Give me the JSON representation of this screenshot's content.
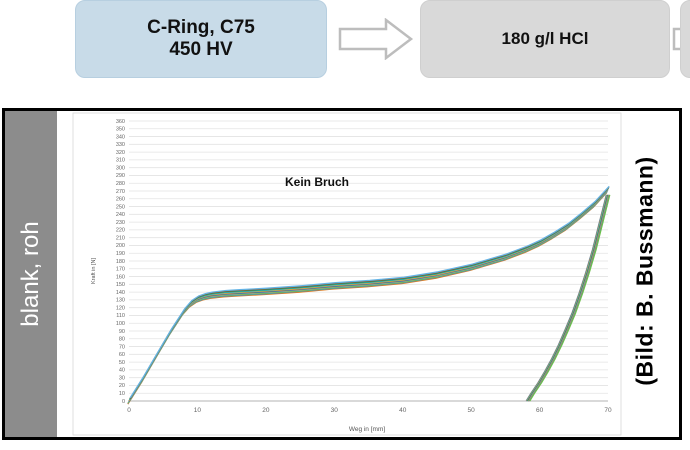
{
  "flow": {
    "box1_line1": "C-Ring, C75",
    "box1_line2": "450 HV",
    "box2_label": "180 g/l HCl"
  },
  "panel": {
    "side_label": "blank, roh",
    "credit": "(Bild: B. Bussmann)"
  },
  "colors": {
    "box1": "#c8dbe8",
    "box2": "#d9d9d9",
    "side_bar": "#8c8c8c",
    "series": [
      "#e07b1c",
      "#4f8fbf",
      "#6cc04a",
      "#9e9e9e",
      "#2e6fa0",
      "#f0a030",
      "#40b0c0",
      "#1b9e77",
      "#8a5a2a",
      "#64b4e6"
    ]
  },
  "chart_data": {
    "type": "line",
    "annotation": "Kein Bruch",
    "xlabel": "Weg in [mm]",
    "ylabel": "Kraft in [N]",
    "xlim": [
      0,
      70
    ],
    "ylim": [
      0,
      360
    ],
    "xticks": [
      0,
      10,
      20,
      30,
      40,
      50,
      60,
      70
    ],
    "yticks": [
      0,
      10,
      20,
      30,
      40,
      50,
      60,
      70,
      80,
      90,
      100,
      110,
      120,
      130,
      140,
      150,
      160,
      170,
      180,
      190,
      200,
      210,
      220,
      230,
      240,
      250,
      260,
      270,
      280,
      290,
      300,
      310,
      320,
      330,
      340,
      350,
      360
    ],
    "grid": true,
    "loading_curve": {
      "x": [
        0,
        2,
        4,
        6,
        8,
        9,
        10,
        11,
        12,
        14,
        16,
        20,
        25,
        30,
        35,
        40,
        45,
        50,
        55,
        58,
        60,
        62,
        64,
        66,
        68,
        70
      ],
      "y": [
        0,
        28,
        58,
        88,
        115,
        125,
        131,
        134,
        136,
        138,
        139,
        141,
        144,
        148,
        151,
        155,
        162,
        172,
        185,
        195,
        203,
        213,
        224,
        238,
        253,
        272
      ]
    },
    "unloading_curve": {
      "x": [
        70,
        69,
        68,
        67,
        66,
        65,
        64,
        63,
        62,
        61,
        60,
        59,
        58.3
      ],
      "y": [
        265,
        230,
        195,
        165,
        138,
        113,
        92,
        72,
        54,
        38,
        23,
        10,
        0
      ]
    },
    "series_count": 10
  }
}
